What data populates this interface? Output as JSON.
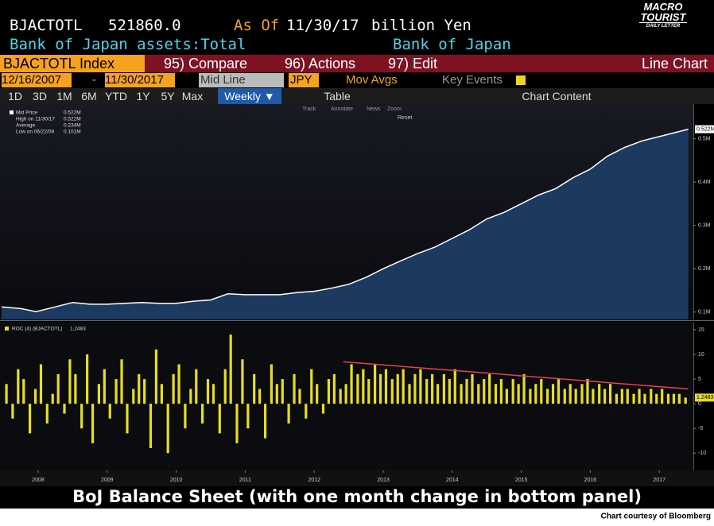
{
  "header": {
    "ticker": "BJACTOTL",
    "last": "521860.0",
    "as_of_label": "As Of",
    "as_of": "11/30/17",
    "unit": "billion Yen",
    "description": "Bank of Japan assets:Total",
    "source": "Bank of Japan"
  },
  "logo": {
    "line1": "MACRO",
    "line2": "TOURIST",
    "line3": "DAILY LETTER"
  },
  "toolbar": {
    "security": "BJACTOTL Index",
    "compare": "95) Compare",
    "actions": "96) Actions",
    "edit": "97) Edit",
    "chart_type": "Line Chart",
    "start_date": "12/16/2007",
    "date_sep": "-",
    "end_date": "11/30/2017",
    "price_field": "Mid Line",
    "currency": "JPY",
    "mov_avgs": "Mov Avgs",
    "key_events": "Key Events",
    "periods": [
      "1D",
      "3D",
      "1M",
      "6M",
      "YTD",
      "1Y",
      "5Y",
      "Max"
    ],
    "frequency": "Weekly ▼",
    "table": "Table",
    "chart_content": "Chart Content",
    "tools": [
      "Track",
      "Annotate",
      "News",
      "Zoom"
    ],
    "reset": "Reset"
  },
  "chart_data": [
    {
      "type": "area",
      "legend": [
        {
          "label": "Mid Price",
          "value": "0.522M"
        },
        {
          "label": "High on 11/30/17",
          "value": "0.522M"
        },
        {
          "label": "Average",
          "value": "0.234M"
        },
        {
          "label": "Low on 06/22/08",
          "value": "0.101M"
        }
      ],
      "x": [
        2007.97,
        2008.25,
        2008.47,
        2008.75,
        2009.0,
        2009.25,
        2009.5,
        2009.75,
        2010.0,
        2010.25,
        2010.5,
        2010.75,
        2011.0,
        2011.25,
        2011.5,
        2011.75,
        2012.0,
        2012.25,
        2012.5,
        2012.75,
        2013.0,
        2013.25,
        2013.5,
        2013.75,
        2014.0,
        2014.25,
        2014.5,
        2014.75,
        2015.0,
        2015.25,
        2015.5,
        2015.75,
        2016.0,
        2016.25,
        2016.5,
        2016.75,
        2017.0,
        2017.25,
        2017.5,
        2017.75,
        2017.92
      ],
      "series": [
        {
          "color": "#ffffff",
          "fill": "#1c3a60",
          "values": [
            0.112,
            0.108,
            0.101,
            0.112,
            0.122,
            0.118,
            0.118,
            0.12,
            0.122,
            0.12,
            0.12,
            0.125,
            0.128,
            0.142,
            0.14,
            0.14,
            0.14,
            0.145,
            0.148,
            0.155,
            0.164,
            0.18,
            0.2,
            0.218,
            0.235,
            0.25,
            0.27,
            0.29,
            0.315,
            0.33,
            0.35,
            0.37,
            0.385,
            0.41,
            0.43,
            0.46,
            0.48,
            0.495,
            0.505,
            0.515,
            0.522
          ],
          "last_value_label": "0.522M"
        }
      ],
      "xlim": [
        2007.97,
        2017.97
      ],
      "ylim": [
        0.083,
        0.58
      ],
      "yticks": [
        {
          "value": 0.1,
          "label": "0.1M"
        },
        {
          "value": 0.2,
          "label": "0.2M"
        },
        {
          "value": 0.3,
          "label": "0.3M"
        },
        {
          "value": 0.4,
          "label": "0.4M"
        },
        {
          "value": 0.5,
          "label": "0.5M"
        }
      ]
    },
    {
      "type": "bar",
      "x": [
        2008.04,
        2008.13,
        2008.21,
        2008.29,
        2008.38,
        2008.46,
        2008.54,
        2008.63,
        2008.71,
        2008.79,
        2008.88,
        2008.96,
        2009.04,
        2009.13,
        2009.21,
        2009.29,
        2009.38,
        2009.46,
        2009.54,
        2009.63,
        2009.71,
        2009.79,
        2009.88,
        2009.96,
        2010.04,
        2010.13,
        2010.21,
        2010.29,
        2010.38,
        2010.46,
        2010.54,
        2010.63,
        2010.71,
        2010.79,
        2010.88,
        2010.96,
        2011.04,
        2011.13,
        2011.21,
        2011.29,
        2011.38,
        2011.46,
        2011.54,
        2011.63,
        2011.71,
        2011.79,
        2011.88,
        2011.96,
        2012.04,
        2012.13,
        2012.21,
        2012.29,
        2012.38,
        2012.46,
        2012.54,
        2012.63,
        2012.71,
        2012.79,
        2012.88,
        2012.96,
        2013.04,
        2013.13,
        2013.21,
        2013.29,
        2013.38,
        2013.46,
        2013.54,
        2013.63,
        2013.71,
        2013.79,
        2013.88,
        2013.96,
        2014.04,
        2014.13,
        2014.21,
        2014.29,
        2014.38,
        2014.46,
        2014.54,
        2014.63,
        2014.71,
        2014.79,
        2014.88,
        2014.96,
        2015.04,
        2015.13,
        2015.21,
        2015.29,
        2015.38,
        2015.46,
        2015.54,
        2015.63,
        2015.71,
        2015.79,
        2015.88,
        2015.96,
        2016.04,
        2016.13,
        2016.21,
        2016.29,
        2016.38,
        2016.46,
        2016.54,
        2016.63,
        2016.71,
        2016.79,
        2016.88,
        2016.96,
        2017.04,
        2017.13,
        2017.21,
        2017.29,
        2017.38,
        2017.46,
        2017.54,
        2017.63,
        2017.71,
        2017.79,
        2017.88
      ],
      "series": [
        {
          "name": "ROC (4) (BJACTOTL)",
          "color": "#e8de1e",
          "last_value_label": "1.2483",
          "values": [
            4,
            -3,
            7,
            5,
            -6,
            3,
            8,
            -4,
            2,
            6,
            -2,
            9,
            6,
            -5,
            10,
            -8,
            4,
            7,
            -3,
            5,
            9,
            -6,
            3,
            6,
            5,
            -9,
            11,
            4,
            -10,
            6,
            8,
            -5,
            3,
            7,
            -4,
            5,
            4,
            -6,
            7,
            14,
            -8,
            9,
            -5,
            6,
            3,
            -7,
            8,
            4,
            5,
            -4,
            6,
            3,
            -3,
            7,
            4,
            -2,
            5,
            6,
            3,
            4,
            8,
            6,
            7,
            5,
            8,
            6,
            7,
            5,
            6,
            7,
            4,
            6,
            7,
            5,
            6,
            4,
            6,
            5,
            7,
            4,
            5,
            6,
            4,
            5,
            6,
            4,
            5,
            3,
            5,
            4,
            6,
            3,
            4,
            5,
            3,
            4,
            5,
            3,
            4,
            3,
            4,
            5,
            3,
            4,
            3,
            4,
            2,
            3,
            3,
            2,
            3,
            2,
            3,
            2,
            3,
            2,
            2,
            2,
            1.2483
          ]
        }
      ],
      "trendline": {
        "x": [
          2012.92,
          2017.92
        ],
        "values": [
          8.5,
          3
        ],
        "color": "#e8414e"
      },
      "xlim": [
        2007.97,
        2017.97
      ],
      "ylim": [
        -13.5,
        16.6
      ],
      "yticks": [
        15,
        10,
        5,
        0,
        -5,
        -10
      ],
      "xticks": [
        {
          "value": 2008.5,
          "label": "2008"
        },
        {
          "value": 2009.5,
          "label": "2009"
        },
        {
          "value": 2010.5,
          "label": "2010"
        },
        {
          "value": 2011.5,
          "label": "2011"
        },
        {
          "value": 2012.5,
          "label": "2012"
        },
        {
          "value": 2013.5,
          "label": "2013"
        },
        {
          "value": 2014.5,
          "label": "2014"
        },
        {
          "value": 2015.5,
          "label": "2015"
        },
        {
          "value": 2016.5,
          "label": "2016"
        },
        {
          "value": 2017.5,
          "label": "2017"
        }
      ]
    }
  ],
  "caption": "BoJ Balance Sheet (with one month change in bottom panel)",
  "credit": "Chart courtesy of Bloomberg"
}
